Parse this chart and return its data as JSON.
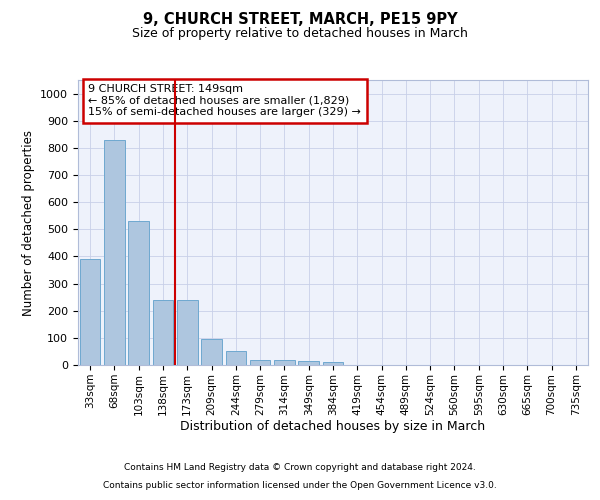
{
  "title": "9, CHURCH STREET, MARCH, PE15 9PY",
  "subtitle": "Size of property relative to detached houses in March",
  "xlabel": "Distribution of detached houses by size in March",
  "ylabel": "Number of detached properties",
  "footer_line1": "Contains HM Land Registry data © Crown copyright and database right 2024.",
  "footer_line2": "Contains public sector information licensed under the Open Government Licence v3.0.",
  "annotation_title": "9 CHURCH STREET: 149sqm",
  "annotation_line2": "← 85% of detached houses are smaller (1,829)",
  "annotation_line3": "15% of semi-detached houses are larger (329) →",
  "bar_color": "#aec6df",
  "bar_edge_color": "#6fa8d0",
  "highlight_line_color": "#cc0000",
  "annotation_box_color": "#cc0000",
  "background_color": "#eef2fb",
  "grid_color": "#c8d0e8",
  "categories": [
    "33sqm",
    "68sqm",
    "103sqm",
    "138sqm",
    "173sqm",
    "209sqm",
    "244sqm",
    "279sqm",
    "314sqm",
    "349sqm",
    "384sqm",
    "419sqm",
    "454sqm",
    "489sqm",
    "524sqm",
    "560sqm",
    "595sqm",
    "630sqm",
    "665sqm",
    "700sqm",
    "735sqm"
  ],
  "values": [
    390,
    830,
    530,
    240,
    240,
    96,
    52,
    20,
    17,
    15,
    10,
    0,
    0,
    0,
    0,
    0,
    0,
    0,
    0,
    0,
    0
  ],
  "ylim": [
    0,
    1050
  ],
  "yticks": [
    0,
    100,
    200,
    300,
    400,
    500,
    600,
    700,
    800,
    900,
    1000
  ]
}
